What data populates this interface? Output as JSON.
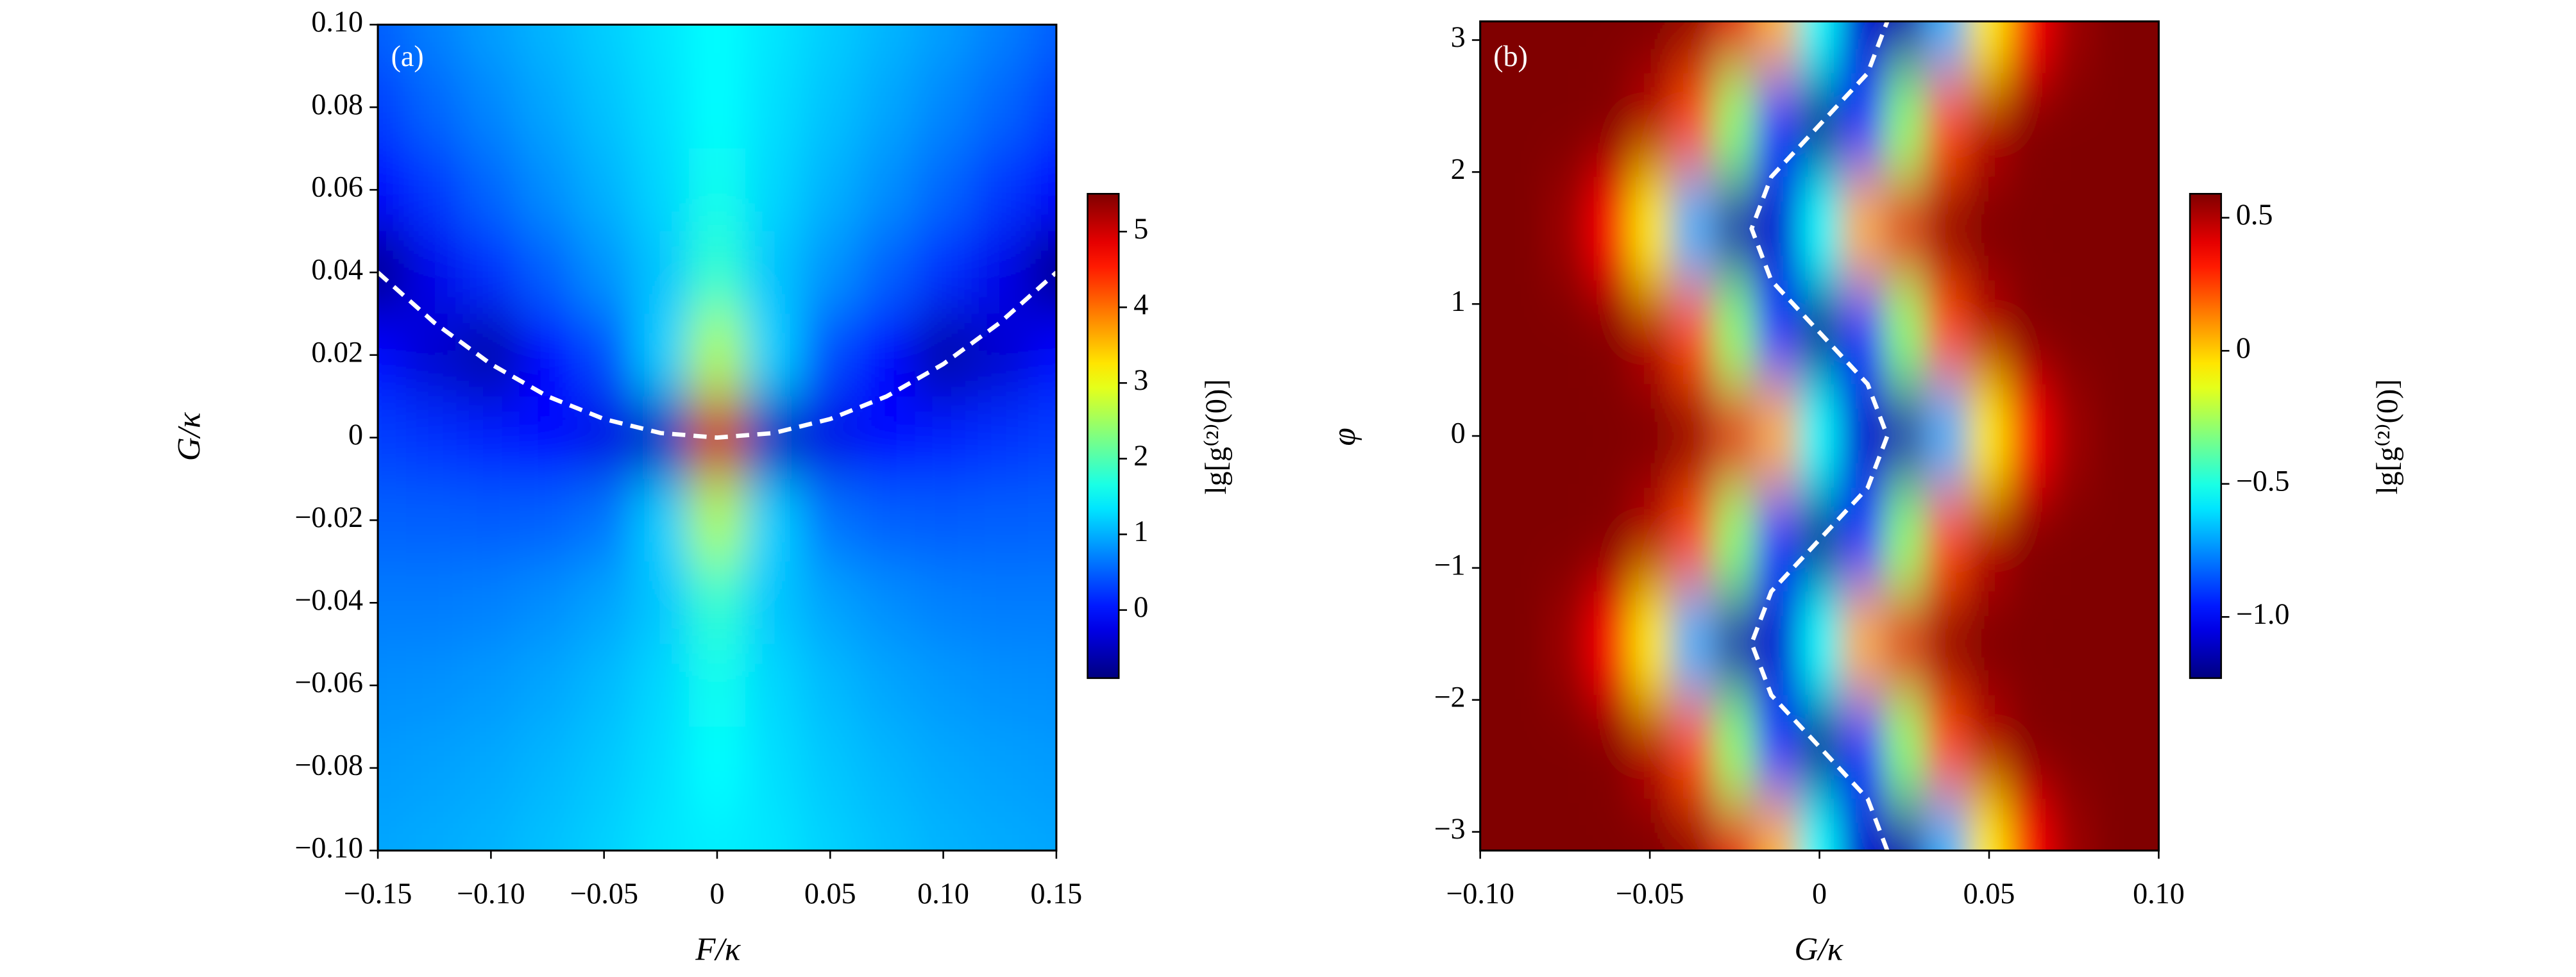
{
  "chart_data": [
    {
      "type": "heatmap",
      "panel_label": "(a)",
      "x_label": "F/κ",
      "y_label": "G/κ",
      "colorbar_label": "lg[g⁽²⁾(0)]",
      "colormap": "jet",
      "x": [
        -0.15,
        -0.125,
        -0.1,
        -0.075,
        -0.05,
        -0.025,
        0,
        0.025,
        0.05,
        0.075,
        0.1,
        0.125,
        0.15
      ],
      "y": [
        0.1,
        0.08,
        0.06,
        0.04,
        0.02,
        0,
        -0.02,
        -0.04,
        -0.06,
        -0.08,
        -0.1
      ],
      "z": [
        [
          0.51,
          0.71,
          0.89,
          1.04,
          1.19,
          1.34,
          1.5,
          1.34,
          1.19,
          1.04,
          0.89,
          0.71,
          0.51
        ],
        [
          0.28,
          0.54,
          0.75,
          0.94,
          1.12,
          1.3,
          1.5,
          1.3,
          1.12,
          0.94,
          0.75,
          0.54,
          0.28
        ],
        [
          -0.09,
          0.26,
          0.54,
          0.79,
          1.01,
          1.24,
          1.6,
          1.24,
          1.01,
          0.79,
          0.54,
          0.26,
          -0.09
        ],
        [
          -0.8,
          -0.23,
          0.18,
          0.51,
          0.82,
          1.13,
          1.8,
          1.13,
          0.82,
          0.51,
          0.18,
          -0.23,
          -0.8
        ],
        [
          -0.09,
          -0.41,
          -0.64,
          -0.09,
          0.37,
          1.2,
          2.6,
          1.2,
          0.37,
          -0.09,
          -0.64,
          -0.41,
          -0.09
        ],
        [
          0.28,
          0.18,
          0.06,
          -0.09,
          -0.27,
          -0.51,
          5,
          -0.51,
          -0.27,
          -0.09,
          0.06,
          0.18,
          0.28
        ],
        [
          0.51,
          0.49,
          0.48,
          0.51,
          0.63,
          1.2,
          2.6,
          1.2,
          0.63,
          0.51,
          0.48,
          0.49,
          0.51
        ],
        [
          0.67,
          0.68,
          0.71,
          0.79,
          0.92,
          1.14,
          1.8,
          1.14,
          0.92,
          0.79,
          0.71,
          0.68,
          0.67
        ],
        [
          0.79,
          0.81,
          0.86,
          0.94,
          1.07,
          1.25,
          1.6,
          1.25,
          1.07,
          0.94,
          0.86,
          0.81,
          0.79
        ],
        [
          0.87,
          0.91,
          0.96,
          1.04,
          1.15,
          1.3,
          1.5,
          1.3,
          1.15,
          1.04,
          0.96,
          0.91,
          0.87
        ],
        [
          0.94,
          0.98,
          1.03,
          1.11,
          1.21,
          1.34,
          1.4,
          1.34,
          1.21,
          1.11,
          1.03,
          0.98,
          0.94
        ]
      ],
      "xlim": [
        -0.15,
        0.15
      ],
      "ylim": [
        -0.1,
        0.1
      ],
      "xticks": [
        {
          "value": -0.15,
          "label": "−0.15"
        },
        {
          "value": -0.1,
          "label": "−0.10"
        },
        {
          "value": -0.05,
          "label": "−0.05"
        },
        0,
        0.05,
        {
          "value": 0.1,
          "label": "0.10"
        },
        0.15
      ],
      "yticks": [
        {
          "value": 0.1,
          "label": "0.10"
        },
        0.08,
        0.06,
        0.04,
        0.02,
        0,
        {
          "value": -0.02,
          "label": "−0.02"
        },
        {
          "value": -0.04,
          "label": "−0.04"
        },
        {
          "value": -0.06,
          "label": "−0.06"
        },
        {
          "value": -0.08,
          "label": "−0.08"
        },
        {
          "value": -0.1,
          "label": "−0.10"
        }
      ],
      "clim": [
        -0.9,
        5.5
      ],
      "cticks": [
        0,
        1,
        2,
        3,
        4,
        5
      ],
      "curve": {
        "color": "#ffffff",
        "style": "dashed",
        "x": [
          -0.15,
          -0.125,
          -0.1,
          -0.075,
          -0.05,
          -0.025,
          0,
          0.025,
          0.05,
          0.075,
          0.1,
          0.125,
          0.15
        ],
        "y": [
          0.04,
          0.0278,
          0.0178,
          0.01,
          0.0045,
          0.0011,
          0,
          0.0011,
          0.0045,
          0.01,
          0.0178,
          0.0278,
          0.04
        ]
      }
    },
    {
      "type": "heatmap",
      "panel_label": "(b)",
      "x_label": "G/κ",
      "y_label": "φ",
      "colorbar_label": "lg[g⁽²⁾(0)]",
      "colormap": "jet",
      "x": [
        -0.1,
        -0.0875,
        -0.075,
        -0.0625,
        -0.05,
        -0.0375,
        -0.025,
        -0.0125,
        0,
        0.0125,
        0.025,
        0.0375,
        0.05,
        0.0625,
        0.075,
        0.0875,
        0.1
      ],
      "y": [
        3.1416,
        2.3562,
        1.5708,
        0.7854,
        0,
        -0.7854,
        -1.5708,
        -2.3562,
        -3.1416
      ],
      "z": [
        [
          0.59,
          0.59,
          0.59,
          0.59,
          0.59,
          0.55,
          0.41,
          0.04,
          -0.55,
          -1.09,
          -1.15,
          -0.68,
          -0.06,
          0.36,
          0.54,
          0.59,
          0.59
        ],
        [
          0.59,
          0.59,
          0.59,
          0.58,
          0.49,
          0.22,
          -0.3,
          -0.91,
          -1.2,
          -0.91,
          -0.3,
          0.22,
          0.49,
          0.58,
          0.59,
          0.59,
          0.59
        ],
        [
          0.59,
          0.59,
          0.54,
          0.36,
          -0.06,
          -0.68,
          -1.15,
          -1.09,
          -0.55,
          0.04,
          0.41,
          0.55,
          0.59,
          0.59,
          0.59,
          0.59,
          0.59
        ],
        [
          0.59,
          0.59,
          0.59,
          0.58,
          0.49,
          0.22,
          -0.3,
          -0.91,
          -1.2,
          -0.91,
          -0.3,
          0.22,
          0.49,
          0.58,
          0.59,
          0.59,
          0.59
        ],
        [
          0.59,
          0.59,
          0.59,
          0.59,
          0.59,
          0.55,
          0.41,
          0.04,
          -0.55,
          -1.09,
          -1.15,
          -0.68,
          -0.06,
          0.36,
          0.54,
          0.59,
          0.59
        ],
        [
          0.59,
          0.59,
          0.59,
          0.58,
          0.49,
          0.22,
          -0.3,
          -0.91,
          -1.2,
          -0.91,
          -0.3,
          0.22,
          0.49,
          0.58,
          0.59,
          0.59,
          0.59
        ],
        [
          0.59,
          0.59,
          0.54,
          0.36,
          -0.06,
          -0.68,
          -1.15,
          -1.09,
          -0.55,
          0.04,
          0.41,
          0.55,
          0.59,
          0.59,
          0.59,
          0.59,
          0.59
        ],
        [
          0.59,
          0.59,
          0.59,
          0.58,
          0.49,
          0.22,
          -0.3,
          -0.91,
          -1.2,
          -0.91,
          -0.3,
          0.22,
          0.49,
          0.58,
          0.59,
          0.59,
          0.59
        ],
        [
          0.59,
          0.59,
          0.59,
          0.59,
          0.59,
          0.55,
          0.41,
          0.04,
          -0.55,
          -1.09,
          -1.15,
          -0.68,
          -0.06,
          0.36,
          0.54,
          0.59,
          0.59
        ]
      ],
      "xlim": [
        -0.1,
        0.1
      ],
      "ylim": [
        -3.1416,
        3.1416
      ],
      "xticks": [
        {
          "value": -0.1,
          "label": "−0.10"
        },
        {
          "value": -0.05,
          "label": "−0.05"
        },
        0,
        0.05,
        {
          "value": 0.1,
          "label": "0.10"
        }
      ],
      "yticks": [
        {
          "value": -3,
          "label": "−3"
        },
        {
          "value": -2,
          "label": "−2"
        },
        {
          "value": -1,
          "label": "−1"
        },
        0,
        1,
        2,
        3
      ],
      "clim": [
        -1.23,
        0.59
      ],
      "cticks": [
        0.5,
        0,
        {
          "value": -0.5,
          "label": "−0.5"
        },
        {
          "value": -1.0,
          "label": "−1.0"
        }
      ],
      "curve": {
        "color": "#ffffff",
        "style": "dashed",
        "x": [
          0.02,
          0.0142,
          0,
          -0.0142,
          -0.02,
          -0.0142,
          0,
          0.0142,
          0.02,
          0.0142,
          0,
          -0.0142,
          -0.02,
          -0.0142,
          0,
          0.0142,
          0.02
        ],
        "y": [
          -3.1416,
          -2.7489,
          -2.3562,
          -1.9635,
          -1.5708,
          -1.1781,
          -0.7854,
          -0.3927,
          0,
          0.3927,
          0.7854,
          1.1781,
          1.5708,
          1.9635,
          2.3562,
          2.7489,
          3.1416
        ]
      }
    }
  ]
}
